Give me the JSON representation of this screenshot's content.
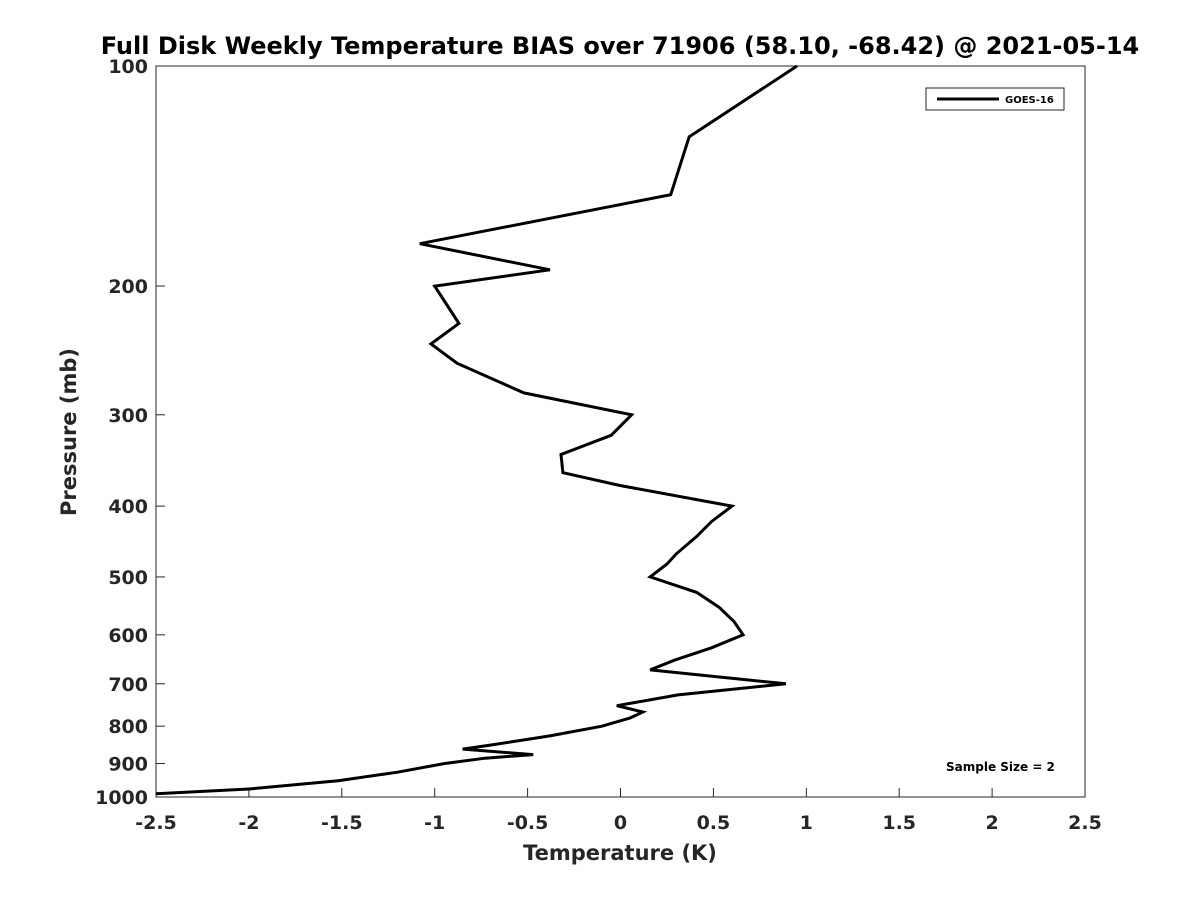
{
  "chart_data": {
    "type": "line",
    "title": "Full Disk Weekly Temperature BIAS over 71906 (58.10, -68.42) @ 2021-05-14",
    "xlabel": "Temperature (K)",
    "ylabel": "Pressure (mb)",
    "xlim": [
      -2.5,
      2.5
    ],
    "ylim": [
      100,
      1000
    ],
    "y_scale": "log",
    "y_reversed": true,
    "xticks": [
      -2.5,
      -2,
      -1.5,
      -1,
      -0.5,
      0,
      0.5,
      1,
      1.5,
      2,
      2.5
    ],
    "xtick_labels": [
      "-2.5",
      "-2",
      "-1.5",
      "-1",
      "-0.5",
      "0",
      "0.5",
      "1",
      "1.5",
      "2",
      "2.5"
    ],
    "yticks": [
      100,
      200,
      300,
      400,
      500,
      600,
      700,
      800,
      900,
      1000
    ],
    "ytick_labels": [
      "100",
      "200",
      "300",
      "400",
      "500",
      "600",
      "700",
      "800",
      "900",
      "1000"
    ],
    "grid": false,
    "legend_position": "top-right",
    "series": [
      {
        "name": "GOES-16",
        "color": "#000000",
        "points": [
          [
            0.95,
            100
          ],
          [
            0.37,
            125
          ],
          [
            0.27,
            150
          ],
          [
            -1.08,
            175
          ],
          [
            -0.38,
            190
          ],
          [
            -1.0,
            200
          ],
          [
            -0.87,
            225
          ],
          [
            -1.02,
            240
          ],
          [
            -0.88,
            255
          ],
          [
            -0.52,
            280
          ],
          [
            0.06,
            300
          ],
          [
            -0.05,
            320
          ],
          [
            -0.32,
            340
          ],
          [
            -0.31,
            360
          ],
          [
            0.0,
            375
          ],
          [
            0.6,
            400
          ],
          [
            0.49,
            420
          ],
          [
            0.41,
            440
          ],
          [
            0.3,
            465
          ],
          [
            0.25,
            480
          ],
          [
            0.16,
            500
          ],
          [
            0.41,
            525
          ],
          [
            0.53,
            550
          ],
          [
            0.61,
            575
          ],
          [
            0.66,
            600
          ],
          [
            0.49,
            625
          ],
          [
            0.29,
            650
          ],
          [
            0.16,
            670
          ],
          [
            0.89,
            700
          ],
          [
            0.31,
            725
          ],
          [
            -0.02,
            750
          ],
          [
            0.12,
            765
          ],
          [
            0.05,
            780
          ],
          [
            -0.1,
            800
          ],
          [
            -0.38,
            825
          ],
          [
            -0.71,
            850
          ],
          [
            -0.85,
            860
          ],
          [
            -0.47,
            875
          ],
          [
            -0.73,
            885
          ],
          [
            -0.95,
            900
          ],
          [
            -1.2,
            925
          ],
          [
            -1.52,
            950
          ],
          [
            -2.0,
            975
          ],
          [
            -2.5,
            990
          ]
        ]
      }
    ],
    "annotation": "Sample Size = 2"
  }
}
